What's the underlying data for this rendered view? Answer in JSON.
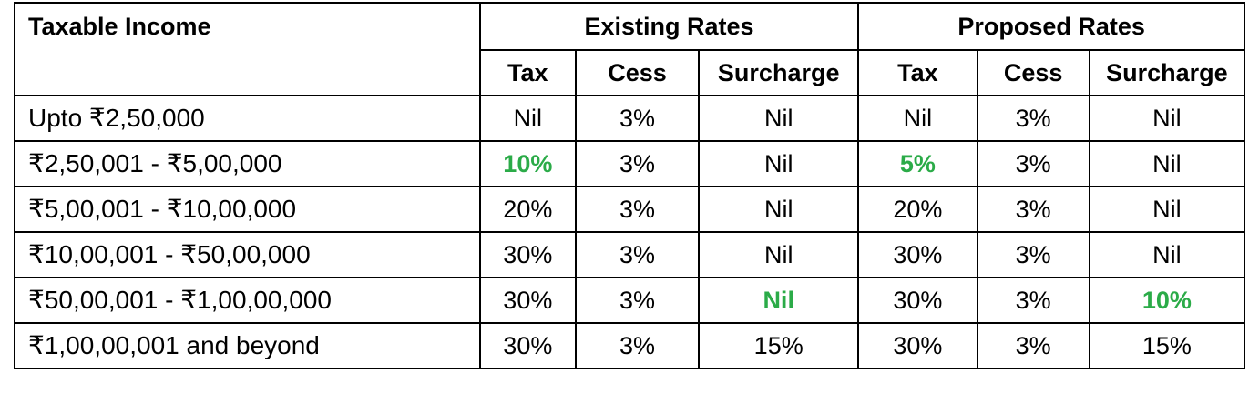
{
  "table": {
    "label_header": "Taxable Income",
    "groups": [
      "Existing Rates",
      "Proposed Rates"
    ],
    "subheaders": [
      "Tax",
      "Cess",
      "Surcharge",
      "Tax",
      "Cess",
      "Surcharge"
    ],
    "highlight_color": "#2bab48",
    "rows": [
      {
        "label": "Upto ₹2,50,000",
        "values": [
          "Nil",
          "3%",
          "Nil",
          "Nil",
          "3%",
          "Nil"
        ],
        "highlight": [
          false,
          false,
          false,
          false,
          false,
          false
        ]
      },
      {
        "label": "₹2,50,001 - ₹5,00,000",
        "values": [
          "10%",
          "3%",
          "Nil",
          "5%",
          "3%",
          "Nil"
        ],
        "highlight": [
          true,
          false,
          false,
          true,
          false,
          false
        ]
      },
      {
        "label": "₹5,00,001 - ₹10,00,000",
        "values": [
          "20%",
          "3%",
          "Nil",
          "20%",
          "3%",
          "Nil"
        ],
        "highlight": [
          false,
          false,
          false,
          false,
          false,
          false
        ]
      },
      {
        "label": "₹10,00,001 -  ₹50,00,000",
        "values": [
          "30%",
          "3%",
          "Nil",
          "30%",
          "3%",
          "Nil"
        ],
        "highlight": [
          false,
          false,
          false,
          false,
          false,
          false
        ]
      },
      {
        "label": "₹50,00,001 -  ₹1,00,00,000",
        "values": [
          "30%",
          "3%",
          "Nil",
          "30%",
          "3%",
          "10%"
        ],
        "highlight": [
          false,
          false,
          true,
          false,
          false,
          true
        ]
      },
      {
        "label": "₹1,00,00,001 and beyond",
        "values": [
          "30%",
          "3%",
          "15%",
          "30%",
          "3%",
          "15%"
        ],
        "highlight": [
          false,
          false,
          false,
          false,
          false,
          false
        ]
      }
    ]
  }
}
